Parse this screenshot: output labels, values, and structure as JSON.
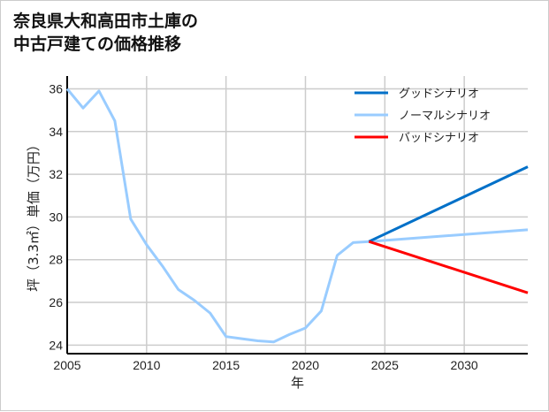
{
  "chart_data": {
    "type": "line",
    "title": [
      "奈良県大和高田市土庫の",
      "中古戸建ての価格推移"
    ],
    "xlabel": "年",
    "ylabel": "坪（3.3㎡）単価（万円）",
    "xlim": [
      2005,
      2034
    ],
    "ylim": [
      23.6,
      36.6
    ],
    "xticks": [
      2005,
      2010,
      2015,
      2020,
      2025,
      2030
    ],
    "yticks": [
      24,
      26,
      28,
      30,
      32,
      34,
      36
    ],
    "grid": true,
    "legend_position": "top-right",
    "series": [
      {
        "name": "グッドシナリオ",
        "color": "#0070c8",
        "x": [
          2024,
          2034
        ],
        "y": [
          28.85,
          32.35
        ]
      },
      {
        "name": "ノーマルシナリオ",
        "color": "#99ccff",
        "x": [
          2005,
          2006,
          2007,
          2008,
          2009,
          2010,
          2011,
          2012,
          2013,
          2014,
          2015,
          2016,
          2017,
          2018,
          2019,
          2020,
          2021,
          2022,
          2023,
          2024,
          2034
        ],
        "y": [
          36.0,
          35.1,
          35.9,
          34.5,
          29.9,
          28.7,
          27.7,
          26.6,
          26.1,
          25.5,
          24.4,
          24.3,
          24.2,
          24.15,
          24.5,
          24.8,
          25.6,
          28.2,
          28.8,
          28.85,
          29.4
        ]
      },
      {
        "name": "バッドシナリオ",
        "color": "#ff0000",
        "x": [
          2024,
          2034
        ],
        "y": [
          28.85,
          26.45
        ]
      }
    ]
  }
}
